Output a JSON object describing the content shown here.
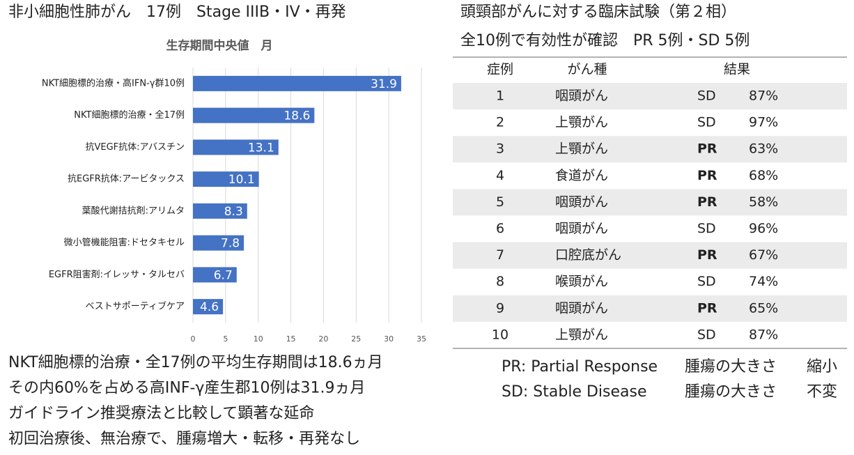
{
  "left_heading": "非小細胞性肺がん　17例　Stage IIIB・IV・再発",
  "chart_data": {
    "type": "bar",
    "orientation": "horizontal",
    "title": "生存期間中央値　月",
    "categories": [
      "NKT細胞標的治療・高IFN-γ群10例",
      "NKT細胞標的治療・全17例",
      "抗VEGF抗体:アバスチン",
      "抗EGFR抗体:アービタックス",
      "葉酸代謝拮抗剤:アリムタ",
      "微小管機能阻害:ドセタキセル",
      "EGFR阻害剤:イレッサ・タルセバ",
      "ベストサポーティブケア"
    ],
    "values": [
      31.9,
      18.6,
      13.1,
      10.1,
      8.3,
      7.8,
      6.7,
      4.6
    ],
    "color": "#4472c4",
    "xlim": [
      0,
      35
    ],
    "xticks": [
      0,
      5,
      10,
      15,
      20,
      25,
      30,
      35
    ],
    "grid": true
  },
  "summary": [
    "NKT細胞標的治療・全17例の平均生存期間は18.6ヵ月",
    "その内60%を占める高INF-γ産生郡10例は31.9ヵ月",
    "ガイドライン推奨療法と比較して顕著な延命",
    "初回治療後、無治療で、腫瘍増大・転移・再発なし"
  ],
  "right_heading": [
    "頭頸部がんに対する臨床試験（第２相）",
    "全10例で有効性が確認　PR 5例・SD 5例"
  ],
  "table": {
    "columns": [
      "症例",
      "がん種",
      "結果"
    ],
    "rows": [
      {
        "case": 1,
        "cancer": "咽頭がん",
        "result": "SD",
        "percent": "87%",
        "bold": false
      },
      {
        "case": 2,
        "cancer": "上顎がん",
        "result": "SD",
        "percent": "97%",
        "bold": false
      },
      {
        "case": 3,
        "cancer": "上顎がん",
        "result": "PR",
        "percent": "63%",
        "bold": true
      },
      {
        "case": 4,
        "cancer": "食道がん",
        "result": "PR",
        "percent": "68%",
        "bold": true
      },
      {
        "case": 5,
        "cancer": "咽頭がん",
        "result": "PR",
        "percent": "58%",
        "bold": true
      },
      {
        "case": 6,
        "cancer": "咽頭がん",
        "result": "SD",
        "percent": "96%",
        "bold": false
      },
      {
        "case": 7,
        "cancer": "口腔底がん",
        "result": "PR",
        "percent": "67%",
        "bold": true
      },
      {
        "case": 8,
        "cancer": "喉頭がん",
        "result": "SD",
        "percent": "74%",
        "bold": false
      },
      {
        "case": 9,
        "cancer": "咽頭がん",
        "result": "PR",
        "percent": "65%",
        "bold": true
      },
      {
        "case": 10,
        "cancer": "上顎がん",
        "result": "SD",
        "percent": "87%",
        "bold": false
      }
    ]
  },
  "legend": [
    {
      "term": "PR: Partial Response",
      "measure": "腫瘍の大きさ",
      "change": "縮小"
    },
    {
      "term": "SD: Stable Disease",
      "measure": "腫瘍の大きさ",
      "change": "不変"
    }
  ]
}
